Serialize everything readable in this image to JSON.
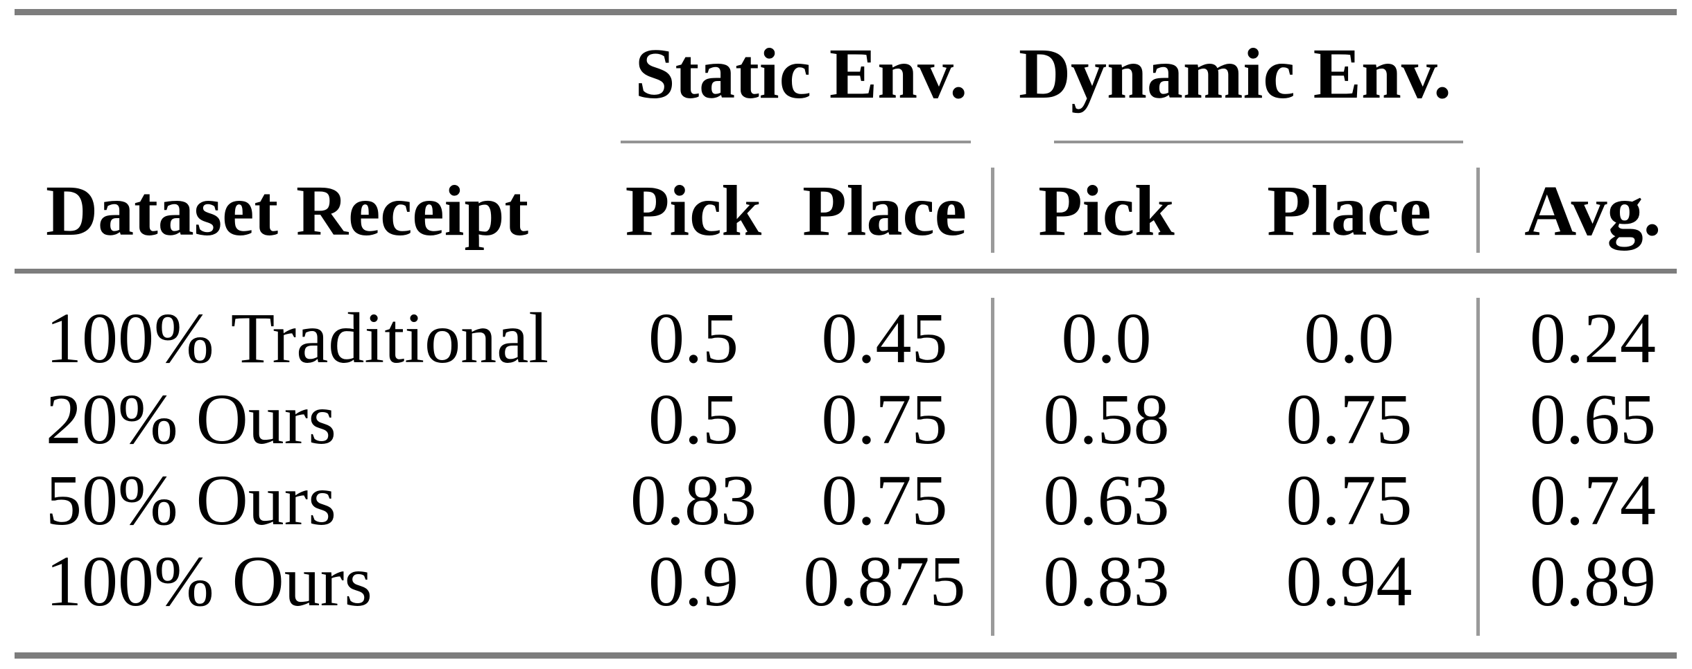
{
  "table": {
    "group_headers": [
      "Static Env.",
      "Dynamic Env."
    ],
    "columns": [
      "Dataset Receipt",
      "Pick",
      "Place",
      "Pick",
      "Place",
      "Avg."
    ],
    "rows": [
      {
        "label": "100% Traditional",
        "values": [
          "0.5",
          "0.45",
          "0.0",
          "0.0",
          "0.24"
        ]
      },
      {
        "label": "20% Ours",
        "values": [
          "0.5",
          "0.75",
          "0.58",
          "0.75",
          "0.65"
        ]
      },
      {
        "label": "50% Ours",
        "values": [
          "0.83",
          "0.75",
          "0.63",
          "0.75",
          "0.74"
        ]
      },
      {
        "label": "100% Ours",
        "values": [
          "0.9",
          "0.875",
          "0.83",
          "0.94",
          "0.89"
        ]
      }
    ],
    "colors": {
      "text": "#000000",
      "background": "#ffffff",
      "thick_rule": "#7d7d7d",
      "thin_rule": "#9a9a9a"
    }
  }
}
